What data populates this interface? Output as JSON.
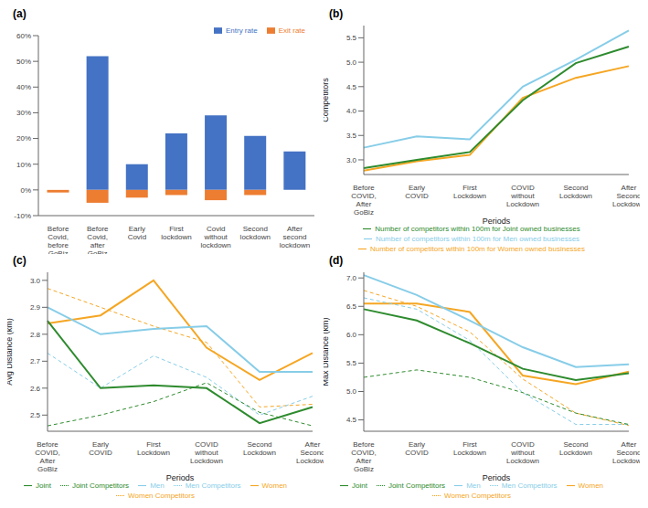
{
  "chart_data": [
    {
      "type": "bar",
      "title": "(a)",
      "stacked": true,
      "grid": false,
      "legend": "top",
      "categories": [
        "Before Covid, before GoBiz",
        "Before Covid, after GoBiz",
        "Early Covid",
        "First lockdown",
        "Covid without lockdown",
        "Second lockdown",
        "After second lockdown"
      ],
      "series": [
        {
          "name": "Entry rate",
          "color": "#4472c4",
          "values": [
            0,
            52,
            10,
            22,
            29,
            21,
            15
          ]
        },
        {
          "name": "Exit rate",
          "color": "#ed7d31",
          "values": [
            -1,
            -5,
            -3,
            -2,
            -4,
            -2,
            0
          ]
        }
      ],
      "ylim": [
        -10,
        60
      ],
      "yticks": [
        {
          "value": -10,
          "label": "-10%"
        },
        {
          "value": 0,
          "label": "0%"
        },
        {
          "value": 10,
          "label": "10%"
        },
        {
          "value": 20,
          "label": "20%"
        },
        {
          "value": 30,
          "label": "30%"
        },
        {
          "value": 40,
          "label": "40%"
        },
        {
          "value": 50,
          "label": "50%"
        },
        {
          "value": 60,
          "label": "60%"
        }
      ]
    },
    {
      "type": "line",
      "title": "(b)",
      "grid": false,
      "legend": "bottom",
      "xlabel": "Periods",
      "ylabel": "Competitors",
      "categories": [
        "Before COVID, After GoBiz",
        "Early COVID",
        "First Lockdown",
        "COVID without Lockdown",
        "Second Lockdown",
        "After Second Lockdown"
      ],
      "series": [
        {
          "name": "Number of competitors within 100m for Women owned businesses",
          "color": "#f5a623",
          "line_style": "solid",
          "values": [
            2.78,
            2.97,
            3.1,
            4.27,
            4.68,
            4.92
          ]
        },
        {
          "name": "Number of competitors within 100m for Men owned businesses",
          "color": "#87cde8",
          "line_style": "solid",
          "values": [
            3.25,
            3.48,
            3.42,
            4.5,
            5.05,
            5.65
          ]
        },
        {
          "name": "Number of competitors within 100m for Joint owned businesses",
          "color": "#2e8b2e",
          "line_style": "solid",
          "values": [
            2.83,
            3.0,
            3.16,
            4.22,
            4.98,
            5.32
          ]
        }
      ],
      "ylim": [
        2.7,
        5.75
      ],
      "yticks": [
        {
          "value": 3,
          "label": "3.0"
        },
        3.5,
        {
          "value": 4,
          "label": "4.0"
        },
        4.5,
        {
          "value": 5,
          "label": "5.0"
        },
        5.5
      ]
    },
    {
      "type": "line",
      "title": "(c)",
      "grid": false,
      "legend": "bottom",
      "xlabel": "Periods",
      "ylabel": "Avg Distance (km)",
      "categories": [
        "Before COVID, After GoBiz",
        "Early COVID",
        "First Lockdown",
        "COVID without Lockdown",
        "Second Lockdown",
        "After Second Lockdown"
      ],
      "series": [
        {
          "name": "Women",
          "color": "#f5a623",
          "line_style": "solid",
          "values": [
            2.84,
            2.87,
            3.0,
            2.75,
            2.63,
            2.73
          ]
        },
        {
          "name": "Women Competitors",
          "color": "#f5a623",
          "line_style": "dashed",
          "values": [
            2.97,
            2.9,
            2.83,
            2.77,
            2.53,
            2.54
          ]
        },
        {
          "name": "Men",
          "color": "#87cde8",
          "line_style": "solid",
          "values": [
            2.9,
            2.8,
            2.82,
            2.83,
            2.66,
            2.66
          ]
        },
        {
          "name": "Men Competitors",
          "color": "#87cde8",
          "line_style": "dashed",
          "values": [
            2.73,
            2.6,
            2.72,
            2.64,
            2.5,
            2.57
          ]
        },
        {
          "name": "Joint",
          "color": "#2e8b2e",
          "line_style": "solid",
          "values": [
            2.85,
            2.6,
            2.61,
            2.6,
            2.47,
            2.53
          ]
        },
        {
          "name": "Joint Competitors",
          "color": "#2e8b2e",
          "line_style": "dashed",
          "values": [
            2.46,
            2.5,
            2.55,
            2.62,
            2.51,
            2.46
          ]
        }
      ],
      "ylim": [
        2.44,
        3.03
      ],
      "yticks": [
        2.5,
        2.6,
        2.7,
        2.8,
        2.9,
        {
          "value": 3,
          "label": "3.0"
        }
      ]
    },
    {
      "type": "line",
      "title": "(d)",
      "grid": false,
      "legend": "bottom",
      "xlabel": "Periods",
      "ylabel": "Max Distance (km)",
      "categories": [
        "Before COVID, After GoBiz",
        "Early COVID",
        "First Lockdown",
        "COVID without Lockdown",
        "Second Lockdown",
        "After Second Lockdown"
      ],
      "series": [
        {
          "name": "Women",
          "color": "#f5a623",
          "line_style": "solid",
          "values": [
            6.55,
            6.55,
            6.4,
            5.28,
            5.13,
            5.35
          ]
        },
        {
          "name": "Women Competitors",
          "color": "#f5a623",
          "line_style": "dashed",
          "values": [
            6.78,
            6.5,
            6.05,
            5.22,
            4.62,
            4.4
          ]
        },
        {
          "name": "Men",
          "color": "#87cde8",
          "line_style": "solid",
          "values": [
            7.05,
            6.7,
            6.25,
            5.78,
            5.43,
            5.48
          ]
        },
        {
          "name": "Men Competitors",
          "color": "#87cde8",
          "line_style": "dashed",
          "values": [
            6.65,
            6.45,
            5.9,
            4.98,
            4.42,
            4.42
          ]
        },
        {
          "name": "Joint",
          "color": "#2e8b2e",
          "line_style": "solid",
          "values": [
            6.45,
            6.25,
            5.85,
            5.4,
            5.2,
            5.32
          ]
        },
        {
          "name": "Joint Competitors",
          "color": "#2e8b2e",
          "line_style": "dashed",
          "values": [
            5.25,
            5.38,
            5.25,
            4.98,
            4.62,
            4.42
          ]
        }
      ],
      "ylim": [
        4.3,
        7.1
      ],
      "yticks": [
        4.5,
        {
          "value": 5,
          "label": "5.0"
        },
        5.5,
        {
          "value": 6,
          "label": "6.0"
        },
        6.5,
        {
          "value": 7,
          "label": "7.0"
        }
      ]
    }
  ]
}
